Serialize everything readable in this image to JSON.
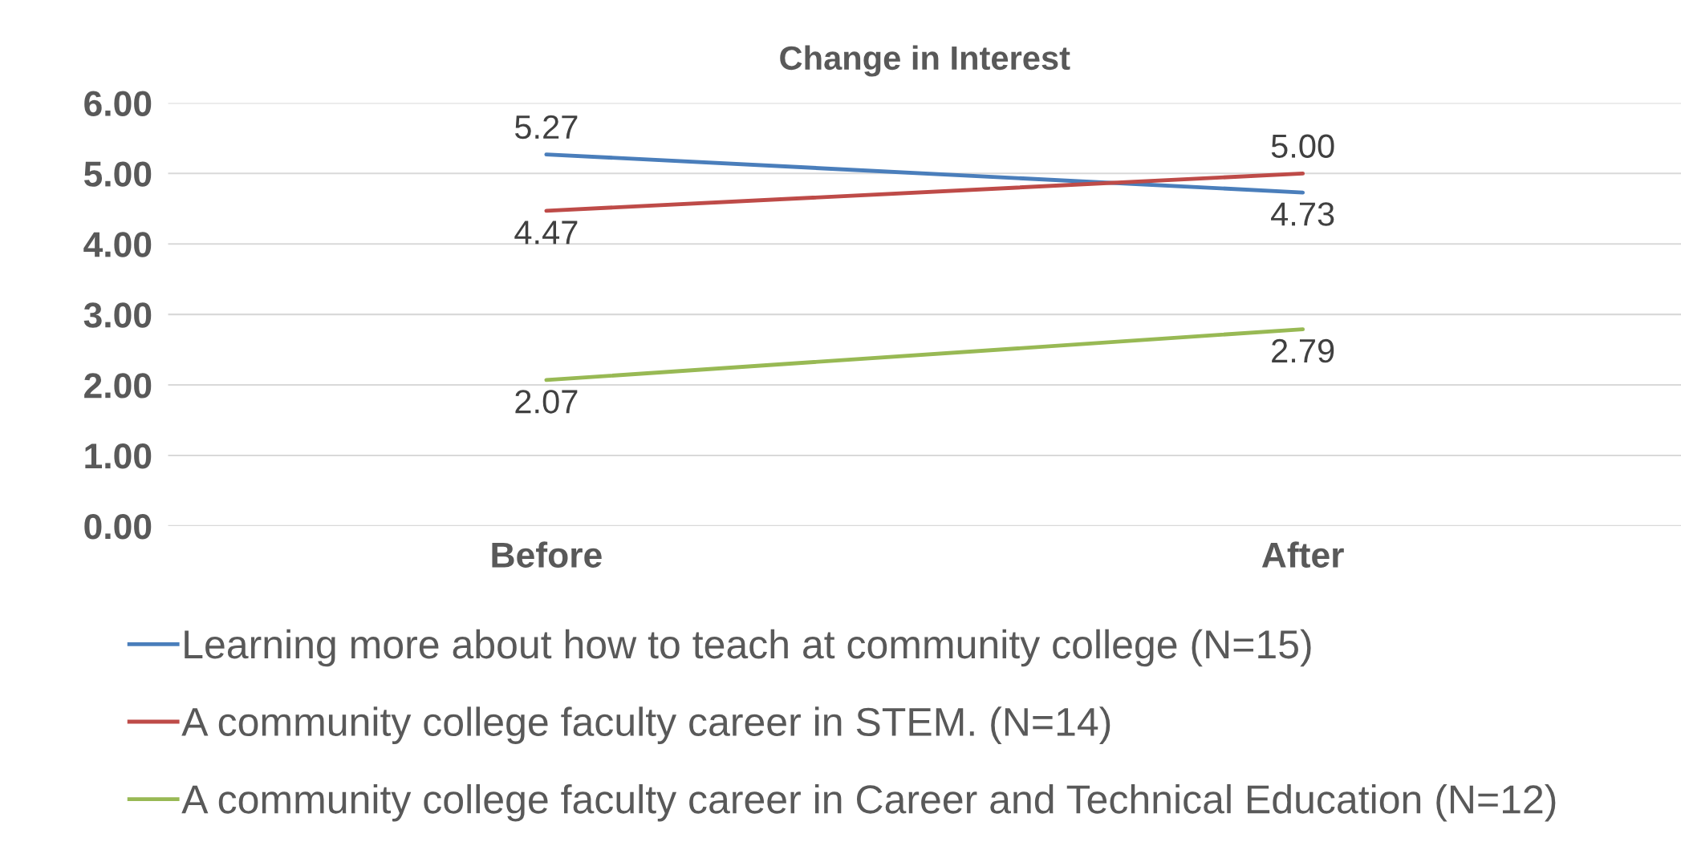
{
  "chart_data": {
    "type": "line",
    "title": "Change in Interest",
    "categories": [
      "Before",
      "After"
    ],
    "series": [
      {
        "name": "Learning more about how to teach at community college (N=15)",
        "color": "#4a7ebb",
        "values": [
          5.27,
          4.73
        ],
        "value_labels": [
          "5.27",
          "4.73"
        ]
      },
      {
        "name": "A community college faculty career in STEM. (N=14)",
        "color": "#be4b48",
        "values": [
          4.47,
          5.0
        ],
        "value_labels": [
          "4.47",
          "5.00"
        ]
      },
      {
        "name": "A community college faculty career in Career and Technical Education (N=12)",
        "color": "#98b954",
        "values": [
          2.07,
          2.79
        ],
        "value_labels": [
          "2.07",
          "2.79"
        ]
      }
    ],
    "ylim": [
      0,
      6
    ],
    "yticks": [
      {
        "value": 0,
        "label": "0.00"
      },
      {
        "value": 1,
        "label": "1.00"
      },
      {
        "value": 2,
        "label": "2.00"
      },
      {
        "value": 3,
        "label": "3.00"
      },
      {
        "value": 4,
        "label": "4.00"
      },
      {
        "value": 5,
        "label": "5.00"
      },
      {
        "value": 6,
        "label": "6.00"
      }
    ],
    "grid": "y",
    "legend": "bottom",
    "marker": "none",
    "line_style": "solid"
  }
}
